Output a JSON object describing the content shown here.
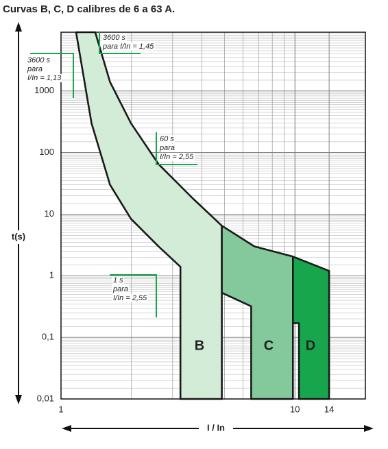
{
  "chart_data": {
    "type": "area",
    "title": "Curvas B, C, D calibres de 6 a 63 A.",
    "x_label": "I / In",
    "y_label": "t(s)",
    "log_x": true,
    "log_y": true,
    "grid": true,
    "xlim": [
      1,
      20
    ],
    "ylim": [
      0.01,
      9000
    ],
    "xticks": [
      1,
      10,
      14
    ],
    "yticks": [
      {
        "value": 0.01,
        "label": "0,01"
      },
      {
        "value": 0.1,
        "label": "0,1"
      },
      1,
      10,
      100,
      1000
    ],
    "series": [
      {
        "name": "B",
        "color": "#d3ecd8",
        "x": [
          1.16,
          1.35,
          1.62,
          1.99,
          2.61,
          3.24,
          3.24,
          4.87,
          4.87,
          3.66,
          2.61,
          1.99,
          1.62,
          1.4
        ],
        "y": [
          9000,
          300,
          30,
          8.4,
          3.0,
          1.4,
          0.01,
          0.01,
          6.5,
          18,
          65,
          300,
          1400,
          9000
        ]
      },
      {
        "name": "C",
        "color": "#84c99b",
        "x": [
          4.87,
          6.7,
          9.8,
          9.8,
          6.5,
          6.5,
          4.87
        ],
        "y": [
          6.5,
          3.0,
          2.05,
          0.01,
          0.01,
          0.32,
          0.53
        ]
      },
      {
        "name": "D",
        "color": "#17a64b",
        "x": [
          9.8,
          14,
          14,
          10.4,
          10.4,
          9.8
        ],
        "y": [
          2.05,
          1.2,
          0.01,
          0.01,
          0.17,
          0.17
        ]
      }
    ],
    "annotations": [
      {
        "lines": [
          "3600 s",
          "para I/In = 1,45"
        ]
      },
      {
        "lines": [
          "3600 s",
          "para",
          "I/In = 1,13"
        ]
      },
      {
        "lines": [
          "60 s",
          "para",
          "I/In = 2,55"
        ]
      },
      {
        "lines": [
          "1 s",
          "para",
          "I/In = 2,55"
        ]
      }
    ]
  }
}
